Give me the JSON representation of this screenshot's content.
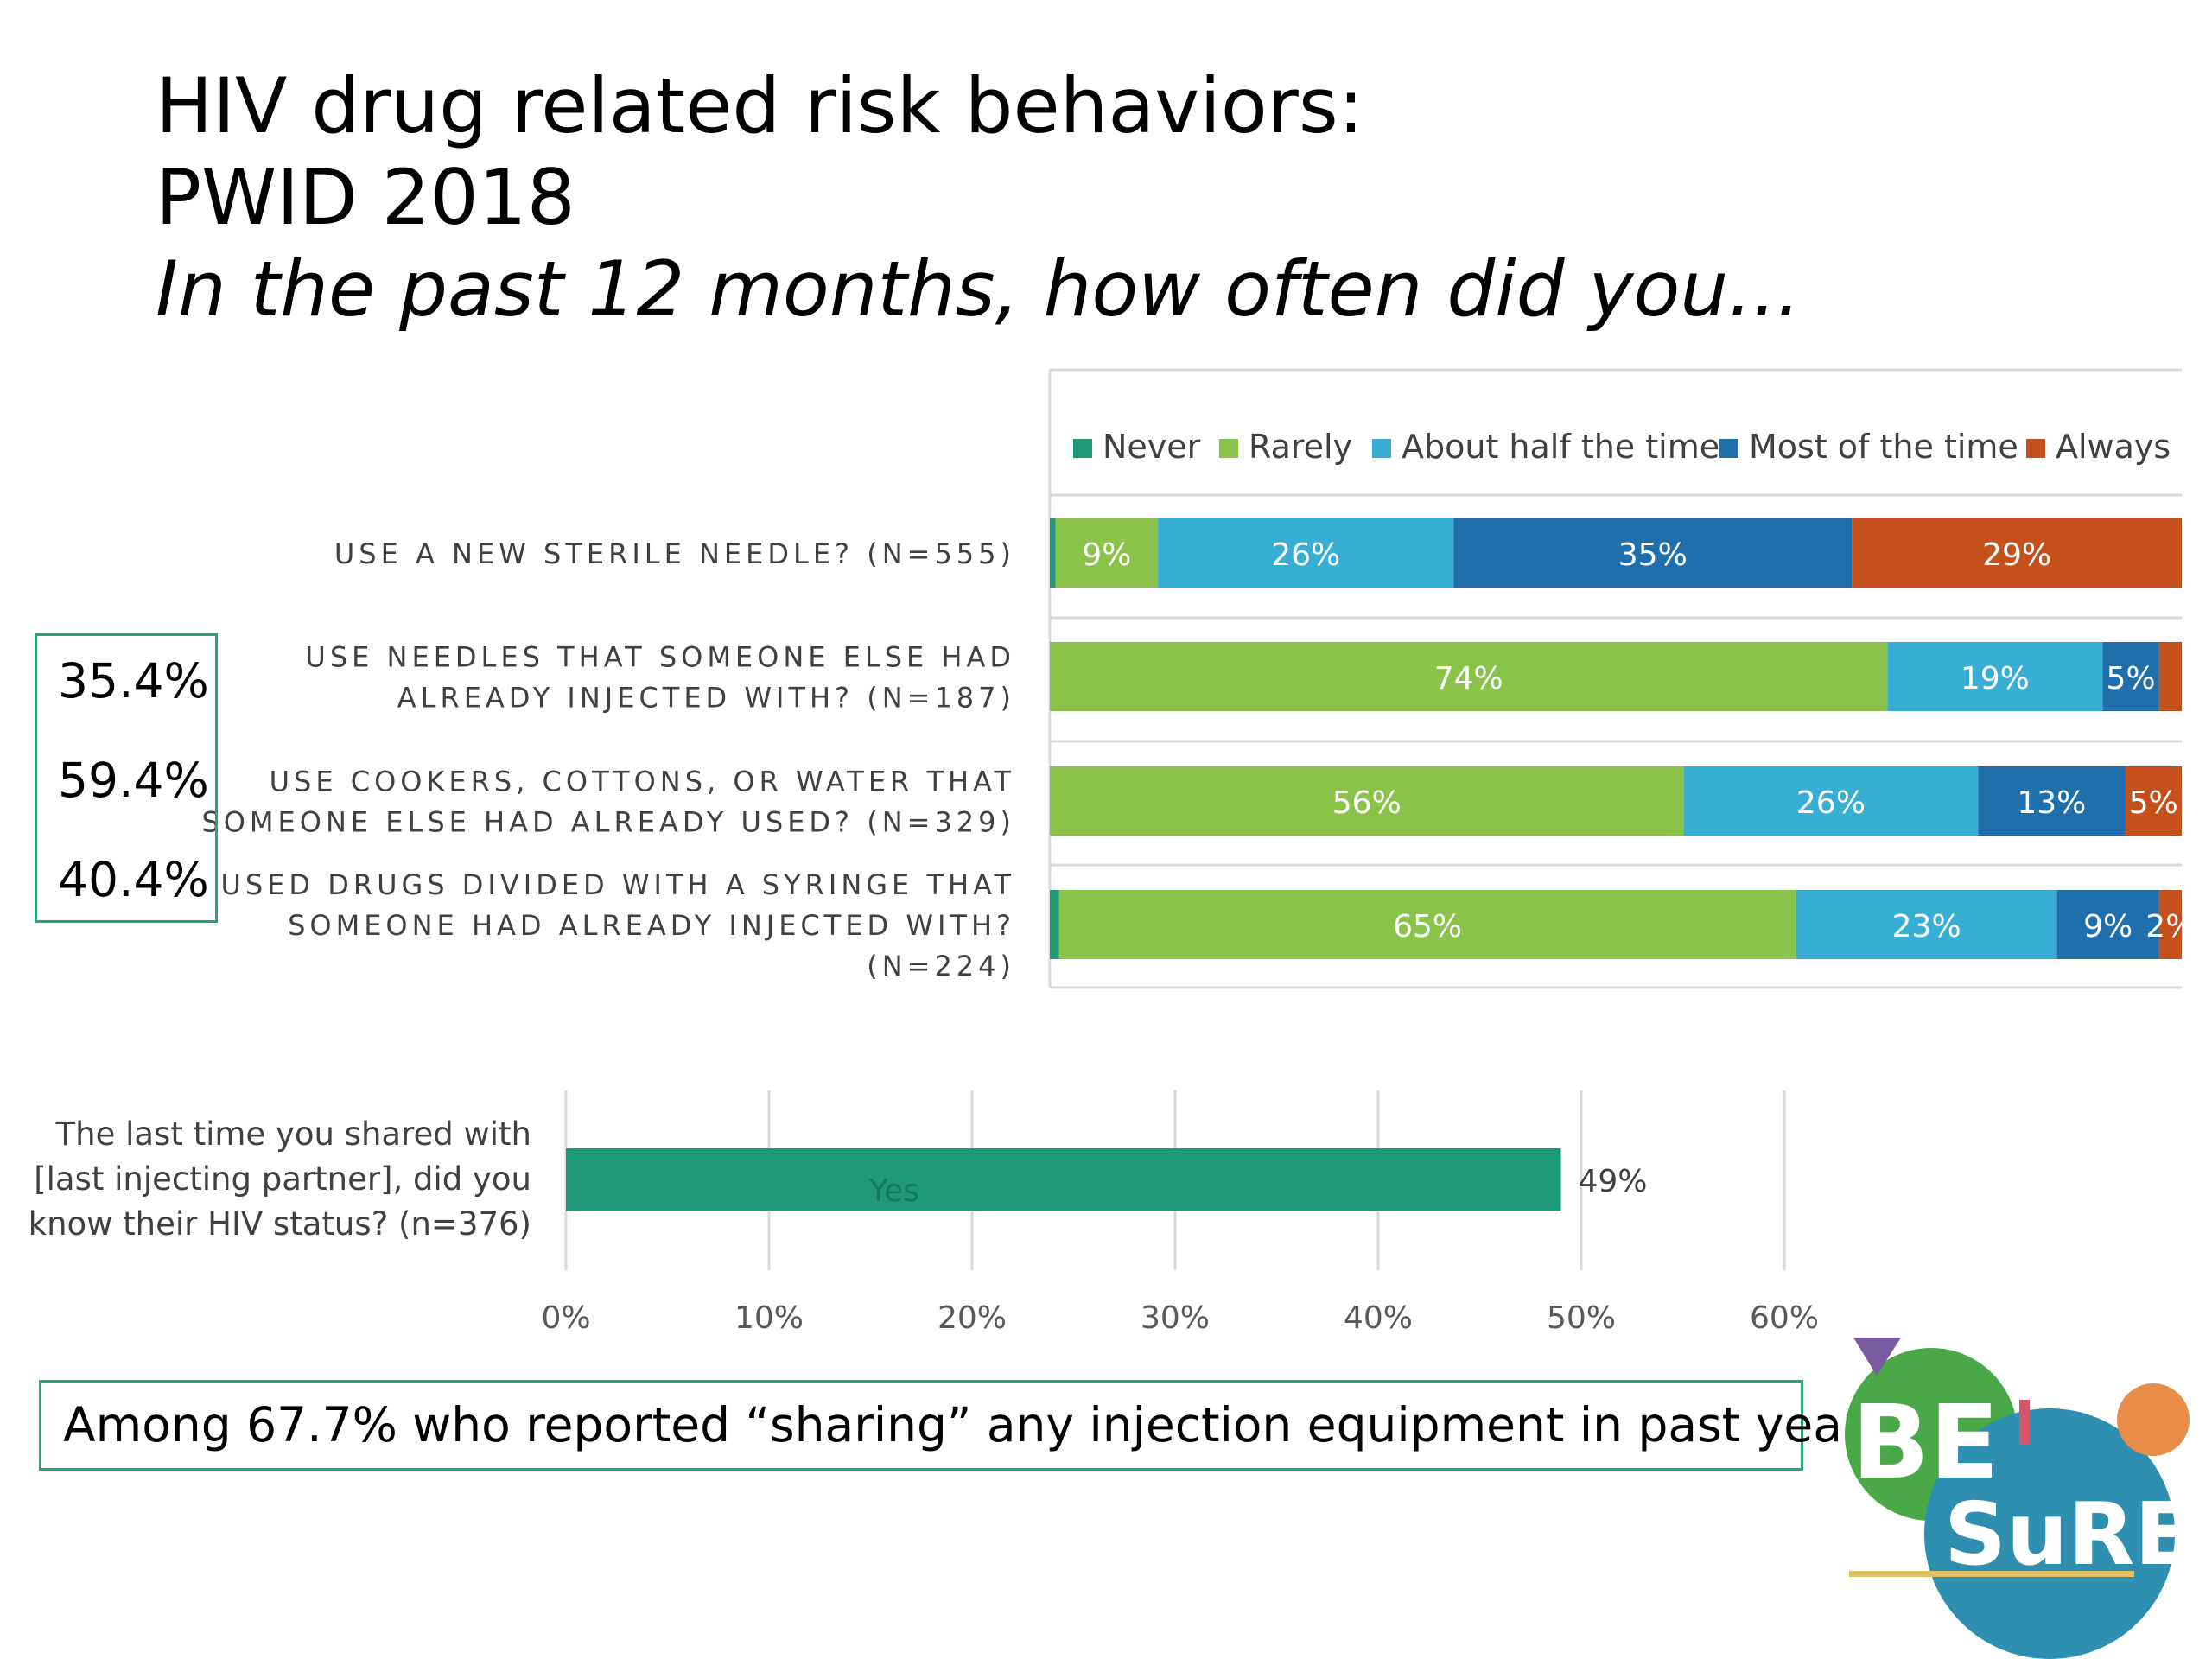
{
  "title": {
    "line1": "HIV drug related risk behaviors:",
    "line2": "PWID 2018",
    "subtitle": "In the past 12 months, how often did you..."
  },
  "stats": [
    "35.4%",
    "59.4%",
    "40.4%"
  ],
  "footer_note": "Among 67.7% who reported “sharing” any injection equipment in past year",
  "logo": {
    "text_top": "BE",
    "text_bottom": "SuRE"
  },
  "colors": {
    "never": "#1f9a77",
    "rarely": "#8bc34a",
    "about_half": "#38aed4",
    "most": "#1f6fad",
    "always": "#c4501c",
    "accent_border": "#2aa37e"
  },
  "chart_data": [
    {
      "type": "bar",
      "orientation": "horizontal",
      "stacked": true,
      "legend_position": "top",
      "xlim": [
        0,
        100
      ],
      "categories": [
        "USE A NEW STERILE NEEDLE? (N=555)",
        "USE NEEDLES THAT SOMEONE ELSE HAD ALREADY INJECTED WITH? (N=187)",
        "USE COOKERS, COTTONS, OR WATER THAT SOMEONE ELSE HAD ALREADY USED? (N=329)",
        "USED DRUGS DIVIDED WITH A SYRINGE THAT SOMEONE HAD ALREADY INJECTED WITH? (N=224)"
      ],
      "category_lines": [
        [
          "USE A NEW STERILE NEEDLE? (N=555)"
        ],
        [
          "USE NEEDLES THAT SOMEONE ELSE HAD",
          "ALREADY INJECTED WITH? (N=187)"
        ],
        [
          "USE COOKERS, COTTONS, OR WATER THAT",
          "SOMEONE ELSE HAD ALREADY USED? (N=329)"
        ],
        [
          "USED DRUGS DIVIDED WITH A SYRINGE THAT",
          "SOMEONE HAD ALREADY INJECTED WITH?",
          "(N=224)"
        ]
      ],
      "series": [
        {
          "name": "Never",
          "color": "#1f9a77",
          "values": [
            0.5,
            0,
            0,
            0.8
          ],
          "labels": [
            "",
            "",
            "",
            ""
          ]
        },
        {
          "name": "Rarely",
          "color": "#8bc34a",
          "values": [
            9,
            74,
            56,
            65
          ],
          "labels": [
            "9%",
            "74%",
            "56%",
            "65%"
          ]
        },
        {
          "name": "About half the time",
          "color": "#38aed4",
          "values": [
            26,
            19,
            26,
            23
          ],
          "labels": [
            "26%",
            "19%",
            "26%",
            "23%"
          ]
        },
        {
          "name": "Most of the time",
          "color": "#1f6fad",
          "values": [
            35,
            5,
            13,
            9
          ],
          "labels": [
            "35%",
            "5%",
            "13%",
            "9%"
          ]
        },
        {
          "name": "Always",
          "color": "#c4501c",
          "values": [
            29,
            2,
            5,
            2
          ],
          "labels": [
            "29%",
            "",
            "5%",
            "2%"
          ]
        }
      ]
    },
    {
      "type": "bar",
      "orientation": "horizontal",
      "grid": true,
      "xlim": [
        0,
        70
      ],
      "x_ticks": [
        0,
        10,
        20,
        30,
        40,
        50,
        60
      ],
      "x_tick_labels": [
        "0%",
        "10%",
        "20%",
        "30%",
        "40%",
        "50%",
        "60%"
      ],
      "category_lines": [
        "The last time you shared with",
        "[last injecting partner], did you",
        "know their HIV status? (n=376)"
      ],
      "bar_label": "Yes",
      "value": 49,
      "value_label": "49%",
      "color": "#1f9a77"
    }
  ]
}
